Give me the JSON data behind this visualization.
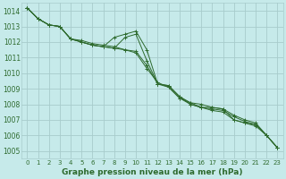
{
  "background_color": "#c6eaea",
  "grid_color": "#a8cccc",
  "line_color": "#2d6a2d",
  "text_color": "#2d6a2d",
  "xlabel": "Graphe pression niveau de la mer (hPa)",
  "ylim": [
    1004.5,
    1014.5
  ],
  "xlim": [
    -0.5,
    23.5
  ],
  "yticks": [
    1005,
    1006,
    1007,
    1008,
    1009,
    1010,
    1011,
    1012,
    1013,
    1014
  ],
  "xticks": [
    0,
    1,
    2,
    3,
    4,
    5,
    6,
    7,
    8,
    9,
    10,
    11,
    12,
    13,
    14,
    15,
    16,
    17,
    18,
    19,
    20,
    21,
    22,
    23
  ],
  "series": [
    [
      1014.2,
      1013.5,
      1013.1,
      1013.0,
      1012.2,
      1012.0,
      1011.8,
      1011.7,
      1011.6,
      1012.3,
      1012.5,
      1010.8,
      1009.3,
      1009.2,
      1008.5,
      1008.0,
      1007.8,
      1007.8,
      1007.7,
      1007.3,
      1007.0,
      1006.8,
      1006.0,
      1005.2
    ],
    [
      1014.2,
      1013.5,
      1013.1,
      1013.0,
      1012.2,
      1012.0,
      1011.8,
      1011.7,
      1012.3,
      1012.5,
      1012.7,
      1011.5,
      1009.3,
      1009.2,
      1008.5,
      1008.1,
      1008.0,
      1007.8,
      1007.7,
      1007.0,
      1006.8,
      1006.7,
      1006.0,
      1005.2
    ],
    [
      1014.2,
      1013.5,
      1013.1,
      1013.0,
      1012.2,
      1012.0,
      1011.8,
      1011.7,
      1011.6,
      1011.5,
      1011.4,
      1010.5,
      1009.3,
      1009.1,
      1008.4,
      1008.0,
      1007.8,
      1007.6,
      1007.5,
      1007.0,
      1006.8,
      1006.6,
      1006.0,
      1005.2
    ],
    [
      1014.2,
      1013.5,
      1013.1,
      1013.0,
      1012.2,
      1012.1,
      1011.9,
      1011.8,
      1011.7,
      1011.5,
      1011.3,
      1010.3,
      1009.4,
      1009.1,
      1008.4,
      1008.1,
      1007.8,
      1007.7,
      1007.6,
      1007.2,
      1006.9,
      1006.7,
      1006.0,
      1005.2
    ]
  ],
  "xlabel_fontsize": 6.5,
  "ytick_fontsize": 5.5,
  "xtick_fontsize": 5.0
}
